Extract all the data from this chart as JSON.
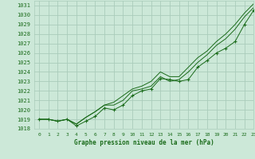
{
  "title": "Graphe pression niveau de la mer (hPa)",
  "bg_color": "#cce8d8",
  "grid_color": "#aaccbb",
  "line_color": "#1a6b1a",
  "xlim": [
    -0.5,
    23
  ],
  "ylim": [
    1018,
    1031.5
  ],
  "xticks": [
    0,
    1,
    2,
    3,
    4,
    5,
    6,
    7,
    8,
    9,
    10,
    11,
    12,
    13,
    14,
    15,
    16,
    17,
    18,
    19,
    20,
    21,
    22,
    23
  ],
  "yticks": [
    1018,
    1019,
    1020,
    1021,
    1022,
    1023,
    1024,
    1025,
    1026,
    1027,
    1028,
    1029,
    1030,
    1031
  ],
  "series": [
    {
      "x": [
        0,
        1,
        2,
        3,
        4,
        5,
        6,
        7,
        8,
        9,
        10,
        11,
        12,
        13,
        14,
        15,
        16,
        17,
        18,
        19,
        20,
        21,
        22,
        23
      ],
      "y": [
        1019.0,
        1019.0,
        1018.8,
        1019.0,
        1018.3,
        1018.8,
        1019.3,
        1020.2,
        1020.0,
        1020.5,
        1021.5,
        1022.0,
        1022.2,
        1023.3,
        1023.2,
        1023.0,
        1023.2,
        1024.5,
        1025.2,
        1026.0,
        1026.5,
        1027.2,
        1029.0,
        1030.5
      ],
      "marker": "+",
      "linestyle": "-"
    },
    {
      "x": [
        0,
        1,
        2,
        3,
        4,
        5,
        6,
        7,
        8,
        9,
        10,
        11,
        12,
        13,
        14,
        15,
        16,
        17,
        18,
        19,
        20,
        21,
        22,
        23
      ],
      "y": [
        1019.0,
        1019.0,
        1018.8,
        1019.0,
        1018.5,
        1019.2,
        1019.8,
        1020.5,
        1020.5,
        1021.0,
        1022.0,
        1022.2,
        1022.5,
        1023.5,
        1023.0,
        1023.2,
        1024.0,
        1025.0,
        1025.8,
        1026.8,
        1027.5,
        1028.5,
        1029.8,
        1030.8
      ],
      "marker": null,
      "linestyle": "-"
    },
    {
      "x": [
        0,
        1,
        2,
        3,
        4,
        5,
        6,
        7,
        8,
        9,
        10,
        11,
        12,
        13,
        14,
        15,
        16,
        17,
        18,
        19,
        20,
        21,
        22,
        23
      ],
      "y": [
        1019.0,
        1019.0,
        1018.8,
        1019.0,
        1018.5,
        1019.2,
        1019.8,
        1020.5,
        1020.8,
        1021.5,
        1022.2,
        1022.5,
        1023.0,
        1024.0,
        1023.5,
        1023.5,
        1024.5,
        1025.5,
        1026.2,
        1027.2,
        1028.0,
        1029.0,
        1030.2,
        1031.2
      ],
      "marker": null,
      "linestyle": "-"
    }
  ]
}
